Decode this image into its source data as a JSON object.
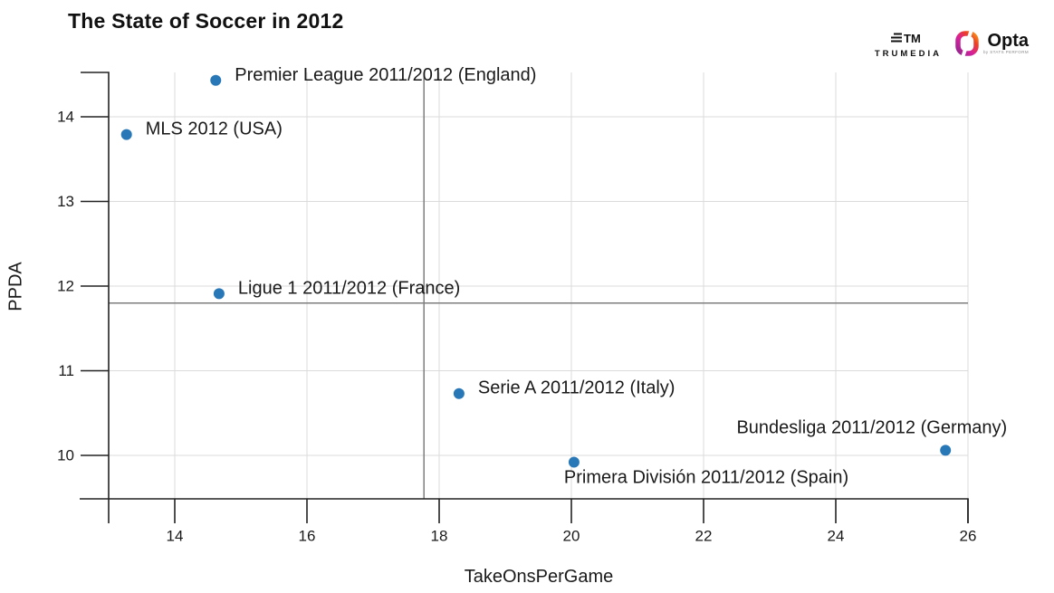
{
  "title": "The State of Soccer in 2012",
  "logos": {
    "trumedia": "TRUMEDIA",
    "trumedia_mark": "TM",
    "opta": "Opta",
    "opta_sub": "by STATS PERFORM"
  },
  "colors": {
    "point": "#2878b8",
    "grid": "#dbdbdb",
    "axis": "#222222",
    "mean_line": "#7e7e7e",
    "text": "#1a1a1a",
    "opta_gradient": [
      "#c4168c",
      "#ee4023",
      "#f7941d"
    ]
  },
  "chart_data": {
    "type": "scatter",
    "title": "The State of Soccer in 2012",
    "xlabel": "TakeOnsPerGame",
    "ylabel": "PPDA",
    "xlim": [
      13.0,
      26.0
    ],
    "ylim": [
      9.49,
      14.52
    ],
    "xticks": [
      14,
      16,
      18,
      20,
      22,
      24,
      26
    ],
    "yticks": [
      10,
      11,
      12,
      13,
      14
    ],
    "grid": true,
    "legend": false,
    "mean_lines": {
      "x": 17.77,
      "y": 11.8
    },
    "points": [
      {
        "label": "Premier League 2011/2012 (England)",
        "x": 14.62,
        "y": 14.43,
        "label_side": "right"
      },
      {
        "label": "MLS 2012 (USA)",
        "x": 13.27,
        "y": 13.79,
        "label_side": "right"
      },
      {
        "label": "Ligue 1 2011/2012 (France)",
        "x": 14.67,
        "y": 11.91,
        "label_side": "right"
      },
      {
        "label": "Serie A 2011/2012 (Italy)",
        "x": 18.3,
        "y": 10.73,
        "label_side": "right"
      },
      {
        "label": "Primera División 2011/2012 (Spain)",
        "x": 20.04,
        "y": 9.92,
        "label_side": "below"
      },
      {
        "label": "Bundesliga 2011/2012 (Germany)",
        "x": 25.66,
        "y": 10.06,
        "label_side": "above-left"
      }
    ]
  }
}
